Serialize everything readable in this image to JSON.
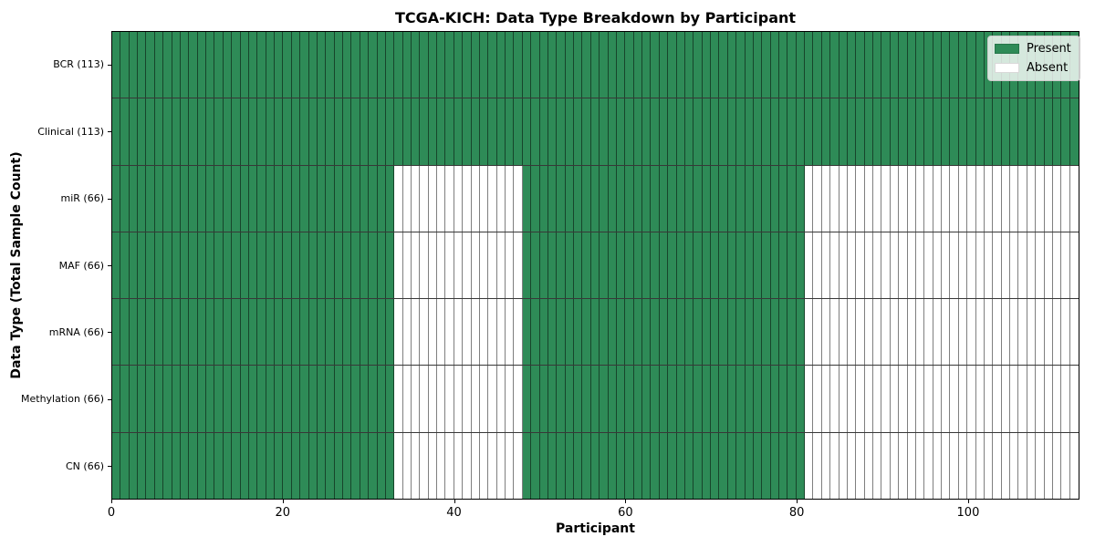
{
  "chart_data": {
    "type": "heatmap",
    "title": "TCGA-KICH: Data Type Breakdown by Participant",
    "xlabel": "Participant",
    "ylabel": "Data Type (Total Sample Count)",
    "n_participants": 113,
    "x_ticks": [
      0,
      20,
      40,
      60,
      80,
      100
    ],
    "x_range": [
      0,
      113
    ],
    "grid": false,
    "legend_position": "upper right",
    "colors": {
      "present": "#2e8b57",
      "absent": "#ffffff",
      "cell_edge": "rgba(0,0,0,0.5)",
      "legend_background": "rgba(255,255,255,0.8)"
    },
    "legend": [
      {
        "label": "Present",
        "color": "#2e8b57"
      },
      {
        "label": "Absent",
        "color": "#ffffff"
      }
    ],
    "rows": [
      {
        "label": "BCR (113)",
        "total_samples": 113,
        "present_ranges": [
          [
            0,
            112
          ]
        ]
      },
      {
        "label": "Clinical (113)",
        "total_samples": 113,
        "present_ranges": [
          [
            0,
            112
          ]
        ]
      },
      {
        "label": "miR (66)",
        "total_samples": 66,
        "present_ranges": [
          [
            0,
            32
          ],
          [
            48,
            80
          ]
        ]
      },
      {
        "label": "MAF (66)",
        "total_samples": 66,
        "present_ranges": [
          [
            0,
            32
          ],
          [
            48,
            80
          ]
        ]
      },
      {
        "label": "mRNA (66)",
        "total_samples": 66,
        "present_ranges": [
          [
            0,
            32
          ],
          [
            48,
            80
          ]
        ]
      },
      {
        "label": "Methylation (66)",
        "total_samples": 66,
        "present_ranges": [
          [
            0,
            32
          ],
          [
            48,
            80
          ]
        ]
      },
      {
        "label": "CN (66)",
        "total_samples": 66,
        "present_ranges": [
          [
            0,
            32
          ],
          [
            48,
            80
          ]
        ]
      }
    ]
  }
}
